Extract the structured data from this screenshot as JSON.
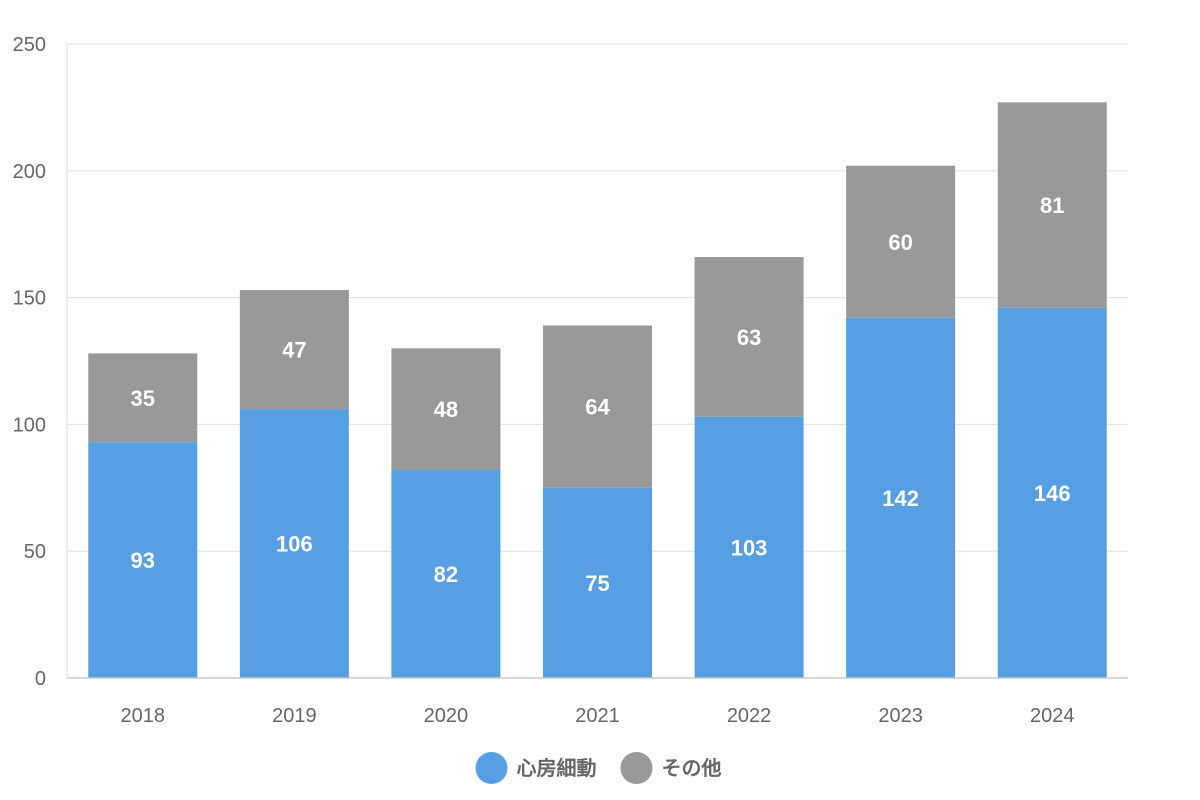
{
  "chart_data": {
    "type": "bar",
    "stacked": true,
    "categories": [
      "2018",
      "2019",
      "2020",
      "2021",
      "2022",
      "2023",
      "2024"
    ],
    "series": [
      {
        "name": "心房細動",
        "values": [
          93,
          106,
          82,
          75,
          103,
          142,
          146
        ],
        "color": "#569fe3"
      },
      {
        "name": "その他",
        "values": [
          35,
          47,
          48,
          64,
          63,
          60,
          81
        ],
        "color": "#999999"
      }
    ],
    "ylim": [
      0,
      250
    ],
    "yticks": [
      0,
      50,
      100,
      150,
      200,
      250
    ],
    "grid": true,
    "legend": "bottom-center",
    "data_labels": true
  }
}
